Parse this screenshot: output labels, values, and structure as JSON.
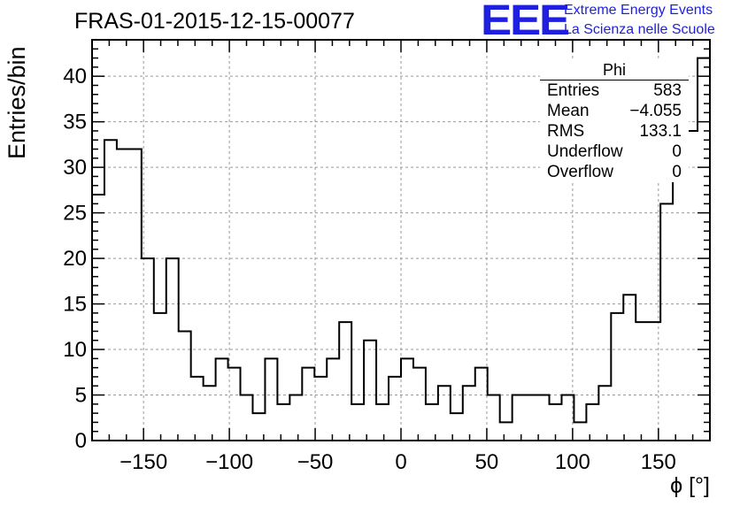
{
  "header": {
    "title": "FRAS-01-2015-12-15-00077",
    "logo": "EEE",
    "logo_line1": "Extreme Energy Events",
    "logo_line2": "La Scienza nelle Scuole"
  },
  "stats": {
    "title": "Phi",
    "rows": [
      {
        "label": "Entries",
        "value": "583"
      },
      {
        "label": "Mean",
        "value": "−4.055"
      },
      {
        "label": "RMS",
        "value": "133.1"
      },
      {
        "label": "Underflow",
        "value": "0"
      },
      {
        "label": "Overflow",
        "value": "0"
      }
    ]
  },
  "colors": {
    "line": "#000000",
    "grid": "#999999",
    "accent": "#1f1fe0"
  },
  "chart_data": {
    "type": "bar",
    "histogram": "step",
    "title": "FRAS-01-2015-12-15-00077",
    "xlabel": "ϕ [°]",
    "ylabel": "Entries/bin",
    "xlim": [
      -180,
      180
    ],
    "ylim": [
      0,
      44
    ],
    "bin_width": 7.2,
    "x_ticks": [
      -150,
      -100,
      -50,
      0,
      50,
      100,
      150
    ],
    "x_tick_labels": [
      "−150",
      "−100",
      "−50",
      "0",
      "50",
      "100",
      "150"
    ],
    "y_ticks": [
      0,
      5,
      10,
      15,
      20,
      25,
      30,
      35,
      40
    ],
    "y_tick_labels": [
      "0",
      "5",
      "10",
      "15",
      "20",
      "25",
      "30",
      "35",
      "40"
    ],
    "grid": true,
    "bin_edges_start": -180,
    "values": [
      27,
      33,
      32,
      32,
      20,
      14,
      20,
      12,
      7,
      6,
      9,
      8,
      5,
      3,
      9,
      4,
      5,
      8,
      7,
      9,
      13,
      4,
      11,
      4,
      7,
      9,
      8,
      4,
      6,
      3,
      6,
      8,
      5,
      2,
      5,
      5,
      5,
      4,
      5,
      2,
      4,
      6,
      14,
      16,
      13,
      13,
      26,
      29,
      34,
      42
    ]
  }
}
